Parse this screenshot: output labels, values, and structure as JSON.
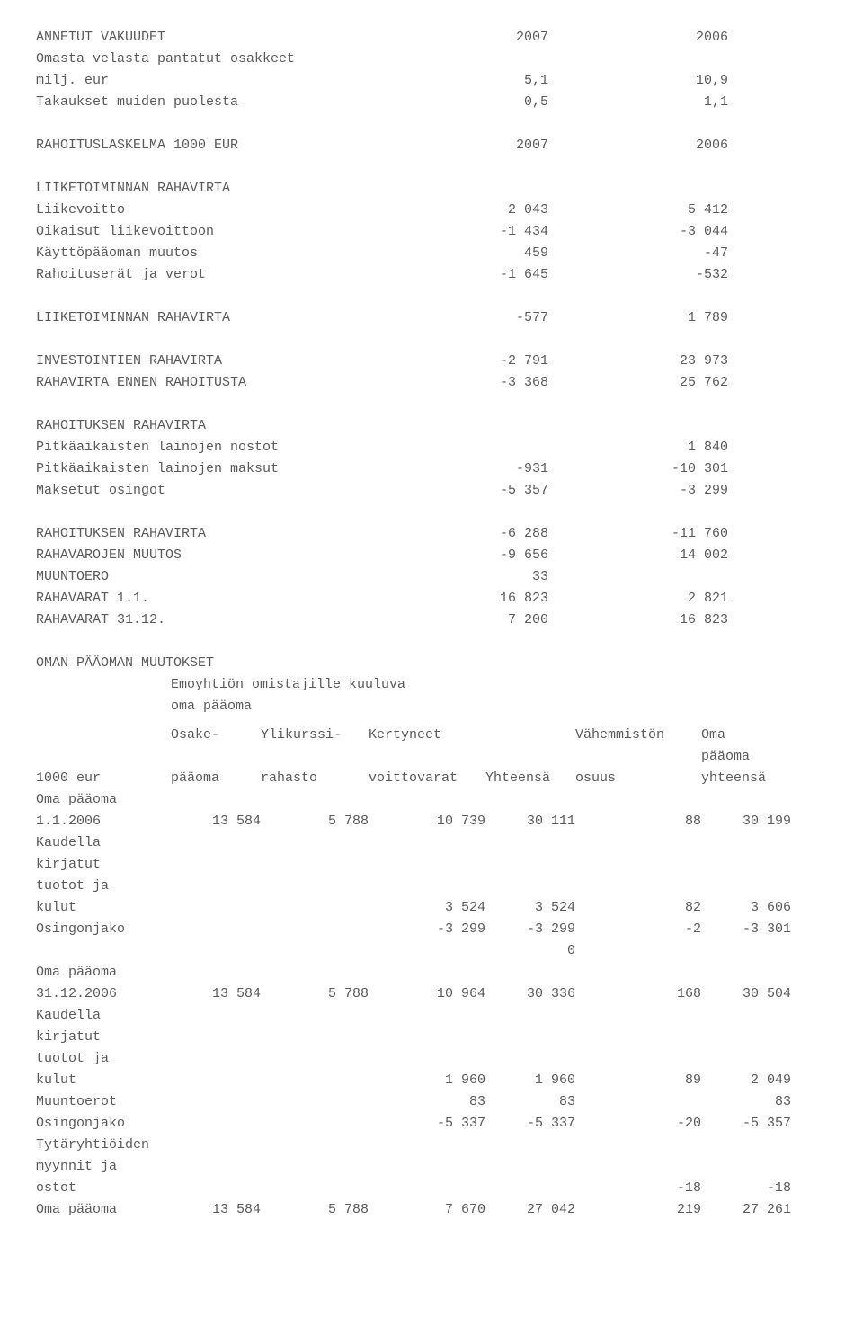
{
  "annetut": {
    "title": "ANNETUT VAKUUDET",
    "year1": "2007",
    "year2": "2006",
    "row1_label": "Omasta velasta pantatut osakkeet",
    "row2_label": "milj. eur",
    "row2_v1": "5,1",
    "row2_v2": "10,9",
    "row3_label": "Takaukset muiden puolesta",
    "row3_v1": "0,5",
    "row3_v2": "1,1"
  },
  "rahoituslaskelma": {
    "title": "RAHOITUSLASKELMA 1000 EUR",
    "year1": "2007",
    "year2": "2006",
    "sec1_title": "LIIKETOIMINNAN RAHAVIRTA",
    "r1_label": "Liikevoitto",
    "r1_v1": "2 043",
    "r1_v2": "5 412",
    "r2_label": "Oikaisut liikevoittoon",
    "r2_v1": "-1 434",
    "r2_v2": "-3 044",
    "r3_label": "Käyttöpääoman muutos",
    "r3_v1": "459",
    "r3_v2": "-47",
    "r4_label": "Rahoituserät ja verot",
    "r4_v1": "-1 645",
    "r4_v2": "-532",
    "r5_label": "LIIKETOIMINNAN RAHAVIRTA",
    "r5_v1": "-577",
    "r5_v2": "1 789",
    "r6_label": "INVESTOINTIEN RAHAVIRTA",
    "r6_v1": "-2 791",
    "r6_v2": "23 973",
    "r7_label": "RAHAVIRTA ENNEN RAHOITUSTA",
    "r7_v1": "-3 368",
    "r7_v2": "25 762",
    "sec2_title": "RAHOITUKSEN RAHAVIRTA",
    "r8_label": "Pitkäaikaisten lainojen nostot",
    "r8_v1": "",
    "r8_v2": "1 840",
    "r9_label": "Pitkäaikaisten lainojen maksut",
    "r9_v1": "-931",
    "r9_v2": "-10 301",
    "r10_label": "Maksetut osingot",
    "r10_v1": "-5 357",
    "r10_v2": "-3 299",
    "r11_label": "RAHOITUKSEN RAHAVIRTA",
    "r11_v1": "-6 288",
    "r11_v2": "-11 760",
    "r12_label": "RAHAVAROJEN MUUTOS",
    "r12_v1": "-9 656",
    "r12_v2": "14 002",
    "r13_label": "MUUNTOERO",
    "r13_v1": "33",
    "r13_v2": "",
    "r14_label": "RAHAVARAT 1.1.",
    "r14_v1": "16 823",
    "r14_v2": "2 821",
    "r15_label": "RAHAVARAT 31.12.",
    "r15_v1": "7 200",
    "r15_v2": "16 823"
  },
  "equity": {
    "title": "OMAN PÄÄOMAN MUUTOKSET",
    "subtitle1": "Emoyhtiön omistajille kuuluva",
    "subtitle2": "oma pääoma",
    "h_1000eur": "1000 eur",
    "h_osake1": "Osake-",
    "h_osake2": "pääoma",
    "h_yli1": "Ylikurssi-",
    "h_yli2": "rahasto",
    "h_kert1": "Kertyneet",
    "h_kert2": "voittovarat",
    "h_yht": "Yhteensä",
    "h_vah1": "Vähemmistön",
    "h_vah2": "osuus",
    "h_oma1": "Oma",
    "h_oma2": "pääoma",
    "h_oma3": "yhteensä",
    "lbl_omapaaoma": "Oma pääoma",
    "lbl_112006": "1.1.2006",
    "r1": {
      "c1": "13 584",
      "c2": "5 788",
      "c3": "10 739",
      "c4": "30 111",
      "c5": "88",
      "c6": "30 199"
    },
    "lbl_kaudella": "Kaudella",
    "lbl_kirjatut": "kirjatut",
    "lbl_tuototja": "tuotot ja",
    "lbl_kulut": "kulut",
    "r2": {
      "c3": "3 524",
      "c4": "3 524",
      "c5": "82",
      "c6": "3 606"
    },
    "lbl_osingonjako": "Osingonjako",
    "r3": {
      "c3": "-3 299",
      "c4": "-3 299",
      "c5": "-2",
      "c6": "-3 301"
    },
    "r3b": {
      "c4": "0"
    },
    "lbl_31122006": "31.12.2006",
    "r4": {
      "c1": "13 584",
      "c2": "5 788",
      "c3": "10 964",
      "c4": "30 336",
      "c5": "168",
      "c6": "30 504"
    },
    "r5": {
      "c3": "1 960",
      "c4": "1 960",
      "c5": "89",
      "c6": "2 049"
    },
    "lbl_muuntoerot": "Muuntoerot",
    "r6": {
      "c3": "83",
      "c4": "83",
      "c5": "",
      "c6": "83"
    },
    "r7": {
      "c3": "-5 337",
      "c4": "-5 337",
      "c5": "-20",
      "c6": "-5 357"
    },
    "lbl_tytar1": "Tytäryhtiöiden",
    "lbl_tytar2": "myynnit ja",
    "lbl_tytar3": "ostot",
    "r8": {
      "c5": "-18",
      "c6": "-18"
    },
    "r9": {
      "c1": "13 584",
      "c2": "5 788",
      "c3": "7 670",
      "c4": "27 042",
      "c5": "219",
      "c6": "27 261"
    }
  }
}
